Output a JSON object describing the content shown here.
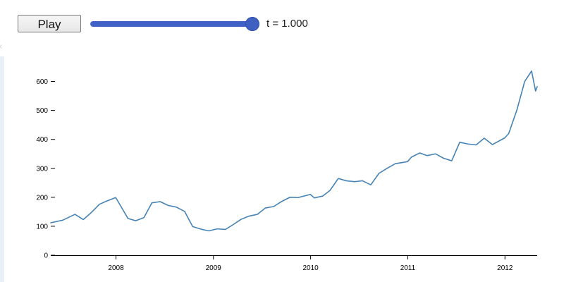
{
  "controls": {
    "play_label": "Play",
    "time_label": "t = 1.000",
    "progress": 1.0
  },
  "chart_data": {
    "type": "line",
    "title": "",
    "xlabel": "",
    "ylabel": "",
    "xlim": [
      "2007-05-01",
      "2012-05-01"
    ],
    "ylim": [
      0,
      650
    ],
    "x_ticks": [
      "2008",
      "2009",
      "2010",
      "2011",
      "2012"
    ],
    "y_ticks": [
      0,
      100,
      200,
      300,
      400,
      500,
      600
    ],
    "grid": false,
    "legend": "none",
    "line_color": "#4682b4",
    "series": [
      {
        "points": [
          [
            "2007-05-01",
            112
          ],
          [
            "2007-06-15",
            121
          ],
          [
            "2007-07-31",
            141
          ],
          [
            "2007-08-31",
            123
          ],
          [
            "2007-09-30",
            147
          ],
          [
            "2007-10-31",
            176
          ],
          [
            "2007-11-30",
            188
          ],
          [
            "2007-12-31",
            199
          ],
          [
            "2008-01-20",
            168
          ],
          [
            "2008-02-15",
            127
          ],
          [
            "2008-03-15",
            119
          ],
          [
            "2008-04-15",
            130
          ],
          [
            "2008-05-15",
            181
          ],
          [
            "2008-06-15",
            185
          ],
          [
            "2008-07-15",
            172
          ],
          [
            "2008-08-15",
            166
          ],
          [
            "2008-09-15",
            151
          ],
          [
            "2008-10-15",
            99
          ],
          [
            "2008-11-15",
            90
          ],
          [
            "2008-12-15",
            84
          ],
          [
            "2009-01-15",
            91
          ],
          [
            "2009-02-15",
            89
          ],
          [
            "2009-03-15",
            105
          ],
          [
            "2009-04-15",
            124
          ],
          [
            "2009-05-15",
            135
          ],
          [
            "2009-06-15",
            141
          ],
          [
            "2009-07-15",
            163
          ],
          [
            "2009-08-15",
            168
          ],
          [
            "2009-09-15",
            186
          ],
          [
            "2009-10-15",
            200
          ],
          [
            "2009-11-15",
            199
          ],
          [
            "2009-12-31",
            210
          ],
          [
            "2010-01-15",
            198
          ],
          [
            "2010-02-15",
            204
          ],
          [
            "2010-03-15",
            224
          ],
          [
            "2010-04-15",
            265
          ],
          [
            "2010-05-15",
            257
          ],
          [
            "2010-06-15",
            254
          ],
          [
            "2010-07-15",
            257
          ],
          [
            "2010-08-15",
            243
          ],
          [
            "2010-09-15",
            283
          ],
          [
            "2010-10-15",
            300
          ],
          [
            "2010-11-15",
            316
          ],
          [
            "2010-12-31",
            323
          ],
          [
            "2011-01-15",
            339
          ],
          [
            "2011-02-15",
            353
          ],
          [
            "2011-03-15",
            344
          ],
          [
            "2011-04-15",
            350
          ],
          [
            "2011-05-15",
            335
          ],
          [
            "2011-06-15",
            326
          ],
          [
            "2011-07-15",
            390
          ],
          [
            "2011-08-15",
            384
          ],
          [
            "2011-09-15",
            381
          ],
          [
            "2011-10-15",
            404
          ],
          [
            "2011-11-15",
            382
          ],
          [
            "2011-12-31",
            405
          ],
          [
            "2012-01-15",
            420
          ],
          [
            "2012-02-15",
            502
          ],
          [
            "2012-03-15",
            600
          ],
          [
            "2012-04-10",
            636
          ],
          [
            "2012-04-25",
            567
          ],
          [
            "2012-05-01",
            582
          ]
        ]
      }
    ]
  }
}
